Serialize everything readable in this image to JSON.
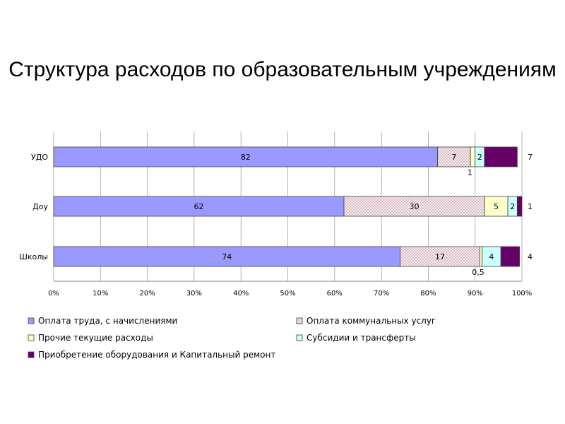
{
  "chart_data": {
    "type": "bar",
    "orientation": "horizontal",
    "stacked": "percent",
    "title": "Структура расходов по образовательным учреждениям",
    "categories": [
      "УДО",
      "Доу",
      "Школы"
    ],
    "series": [
      {
        "name": "Оплата труда, с начислениями",
        "values": [
          82,
          62,
          74
        ],
        "labels": [
          "82",
          "62",
          "74"
        ],
        "color": "#9999ff",
        "pattern": "solid"
      },
      {
        "name": "Оплата коммунальных услуг",
        "values": [
          7,
          30,
          17
        ],
        "labels": [
          "7",
          "30",
          "17"
        ],
        "color": "#e8c8d0",
        "pattern": "dots"
      },
      {
        "name": "Прочие текущие расходы",
        "values": [
          1,
          5,
          0.5
        ],
        "labels": [
          "1",
          "5",
          "0,5"
        ],
        "color": "#ffffcc",
        "pattern": "solid"
      },
      {
        "name": "Субсидии и трансферты",
        "values": [
          2,
          2,
          4
        ],
        "labels": [
          "2",
          "2",
          "4"
        ],
        "color": "#ccffff",
        "pattern": "solid"
      },
      {
        "name": "Приобретение оборудования и Капитальный ремонт",
        "values": [
          7,
          1,
          4
        ],
        "labels": [
          "7",
          "1",
          "4"
        ],
        "color": "#660066",
        "pattern": "solid"
      }
    ],
    "xlim": [
      0,
      100
    ],
    "xticks": [
      "0%",
      "10%",
      "20%",
      "30%",
      "40%",
      "50%",
      "60%",
      "70%",
      "80%",
      "90%",
      "100%"
    ],
    "grid": "vertical",
    "legend": "bottom"
  }
}
